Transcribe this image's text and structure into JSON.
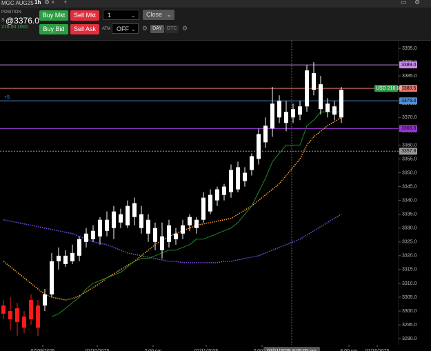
{
  "toolbar": {
    "instrument": "MGC AUG25",
    "interval": "1h",
    "position_label": "POSITION",
    "position_side": "S",
    "position_price": "@3376.0",
    "pnl": "216.00 USD",
    "buy_mkt": "Buy Mkt",
    "sell_mkt": "Sell Mkt",
    "quantity": "1",
    "close": "Close",
    "buy_bid": "Buy Bid",
    "sell_ask": "Sell Ask",
    "atm_label": "ATM",
    "atm_value": "OFF",
    "tif_day": "DAY",
    "tif_gtc": "GTC"
  },
  "chart_data": {
    "type": "candlestick",
    "x": [
      0,
      1,
      2,
      3,
      4,
      5,
      6,
      7,
      8,
      9,
      10,
      11,
      12,
      13,
      14,
      15,
      16,
      17,
      18,
      19,
      20,
      21,
      22,
      23,
      24,
      25,
      26,
      27,
      28,
      29,
      30,
      31,
      32,
      33,
      34,
      35,
      36,
      37,
      38,
      39,
      40,
      41,
      42,
      43,
      44,
      45,
      46,
      47,
      48,
      49
    ],
    "open": [
      3302,
      3300,
      3301,
      3298,
      3304,
      3302,
      3302,
      3306,
      3318,
      3317,
      3318,
      3320,
      3325,
      3326,
      3327,
      3329,
      3330,
      3332,
      3331,
      3334,
      3330,
      3328,
      3325,
      3322,
      3325,
      3326,
      3328,
      3331,
      3330,
      3333,
      3336,
      3340,
      3342,
      3343,
      3344,
      3347,
      3351,
      3355,
      3361,
      3366,
      3370,
      3368,
      3370,
      3371,
      3374,
      3380,
      3373,
      3372,
      3371,
      3370
    ],
    "high": [
      3304,
      3305,
      3303,
      3300,
      3306,
      3304,
      3308,
      3321,
      3323,
      3322,
      3324,
      3327,
      3330,
      3331,
      3334,
      3336,
      3338,
      3337,
      3340,
      3341,
      3338,
      3335,
      3332,
      3332,
      3333,
      3330,
      3333,
      3335,
      3334,
      3343,
      3344,
      3345,
      3346,
      3353,
      3354,
      3352,
      3357,
      3366,
      3370,
      3381,
      3378,
      3376,
      3375,
      3376,
      3389,
      3390,
      3385,
      3377,
      3376,
      3381
    ],
    "low": [
      3297,
      3293,
      3291,
      3292,
      3295,
      3291,
      3300,
      3305,
      3315,
      3316,
      3317,
      3318,
      3323,
      3325,
      3324,
      3327,
      3326,
      3330,
      3330,
      3331,
      3328,
      3325,
      3322,
      3319,
      3323,
      3324,
      3326,
      3329,
      3328,
      3332,
      3335,
      3338,
      3340,
      3341,
      3343,
      3345,
      3349,
      3353,
      3359,
      3363,
      3368,
      3365,
      3368,
      3369,
      3372,
      3378,
      3371,
      3370,
      3369,
      3368
    ],
    "close": [
      3299,
      3297,
      3296,
      3294,
      3297,
      3294,
      3306,
      3318,
      3320,
      3320,
      3321,
      3326,
      3328,
      3329,
      3333,
      3333,
      3336,
      3335,
      3338,
      3339,
      3335,
      3333,
      3330,
      3327,
      3331,
      3328,
      3331,
      3334,
      3333,
      3341,
      3342,
      3344,
      3345,
      3351,
      3352,
      3350,
      3356,
      3364,
      3367,
      3375,
      3376,
      3372,
      3373,
      3374,
      3387,
      3386,
      3382,
      3375,
      3374,
      3380
    ],
    "colors": {
      "up": "#ffffff",
      "down": "#ff1a1a"
    },
    "overlays": [
      {
        "color": "#f39c28",
        "dashed": true,
        "values": [
          3318,
          3316,
          3314,
          3312,
          3310,
          3308,
          3306,
          3305,
          3304.5,
          3304,
          3304.5,
          3305.5,
          3307,
          3308.5,
          3310,
          3312,
          3313.5,
          3315,
          3316.5,
          3318,
          3320,
          3322,
          3324,
          3325.5,
          3327,
          3328,
          3329,
          3330,
          3331,
          3331.5,
          3332,
          3332.5,
          3333,
          3333.5,
          3335,
          3336.5,
          3338,
          3340,
          3342,
          3344,
          3346,
          3349,
          3352,
          3355,
          3360,
          3363,
          3365,
          3367,
          3368.5,
          3370
        ]
      },
      {
        "color": "#7b4fe0",
        "dashed": true,
        "values": [
          3333,
          3332.5,
          3332,
          3331.5,
          3331,
          3330.5,
          3330,
          3329.5,
          3329,
          3328.5,
          3328,
          3327,
          3326,
          3325,
          3324.5,
          3324,
          3323,
          3322,
          3321,
          3320.5,
          3320,
          3319.5,
          3319,
          3318.5,
          3318,
          3318,
          3317.5,
          3317.5,
          3317.5,
          3317.5,
          3317.5,
          3317.5,
          3318,
          3318,
          3318.5,
          3319,
          3319.5,
          3320,
          3321,
          3322,
          3323,
          3324,
          3325,
          3326,
          3327.5,
          3329,
          3330.5,
          3332,
          3333.5,
          3335
        ]
      },
      {
        "color": "#1f8a2a",
        "dashed": false,
        "values": [
          null,
          null,
          null,
          null,
          null,
          null,
          null,
          3298,
          3299,
          3301,
          3303,
          3305,
          3308,
          3310,
          3311,
          3312,
          3313,
          3314,
          3316,
          3318,
          3319,
          3319,
          3320,
          3321,
          3322,
          3322,
          3323,
          3324,
          3326,
          3326,
          3327,
          3328,
          3329,
          3330,
          3332,
          3335,
          3338,
          3343,
          3348,
          3354,
          3357,
          3360,
          3360,
          3360,
          3367,
          3369,
          3372,
          3372,
          3372,
          3372
        ]
      }
    ],
    "levels": [
      {
        "value": 3389,
        "label": "3389.0",
        "color": "#c98be8",
        "dashed": false
      },
      {
        "value": 3380.5,
        "label": "3380.5",
        "color": "#e5776a",
        "dashed": false
      },
      {
        "value": 3376,
        "label": "3376.0",
        "color": "#4f8fd6",
        "dashed": false
      },
      {
        "value": 3366,
        "label": "3366.0",
        "color": "#9b35d6",
        "dashed": false
      },
      {
        "value": 3357.8,
        "label": "3357.8",
        "color": "#9a9a9a",
        "dashed": true
      }
    ],
    "position_tag": "USD 216.00",
    "quantity_tag": "+5",
    "crosshair": {
      "x": 41.8,
      "label": "07/11/2025 8:00:00 pm"
    },
    "xlim": [
      -0.5,
      57.3
    ],
    "xticks": [
      {
        "value": 5.7,
        "label": "07/09/2025"
      },
      {
        "value": 13.6,
        "label": "07/10/2025"
      },
      {
        "value": 21.7,
        "label": "2:00 pm"
      },
      {
        "value": 29.4,
        "label": "07/11/2025"
      },
      {
        "value": 37.5,
        "label": "2:00 pm"
      },
      {
        "value": 50.1,
        "label": "6:00 pm"
      },
      {
        "value": 54.2,
        "label": "07/16/2025"
      }
    ],
    "ylim": [
      3287.8,
      3397.5
    ],
    "yticks": [
      {
        "value": 3290,
        "label": "3290.0"
      },
      {
        "value": 3295,
        "label": "3295.0"
      },
      {
        "value": 3300,
        "label": "3300.0"
      },
      {
        "value": 3305,
        "label": "3305.0"
      },
      {
        "value": 3310,
        "label": "3310.0"
      },
      {
        "value": 3315,
        "label": "3315.0"
      },
      {
        "value": 3320,
        "label": "3320.0"
      },
      {
        "value": 3325,
        "label": "3325.0"
      },
      {
        "value": 3330,
        "label": "3330.0"
      },
      {
        "value": 3335,
        "label": "3335.0"
      },
      {
        "value": 3340,
        "label": "3340.0"
      },
      {
        "value": 3345,
        "label": "3345.0"
      },
      {
        "value": 3350,
        "label": "3350.0"
      },
      {
        "value": 3355,
        "label": "3355.0"
      },
      {
        "value": 3360,
        "label": "3360.0"
      },
      {
        "value": 3365,
        "label": "3365.0"
      },
      {
        "value": 3370,
        "label": "3370.0"
      },
      {
        "value": 3375,
        "label": "3375.0"
      },
      {
        "value": 3380,
        "label": "3380.0"
      },
      {
        "value": 3385,
        "label": "3385.0"
      },
      {
        "value": 3390,
        "label": "3390.0"
      },
      {
        "value": 3395,
        "label": "3395.0"
      }
    ]
  }
}
